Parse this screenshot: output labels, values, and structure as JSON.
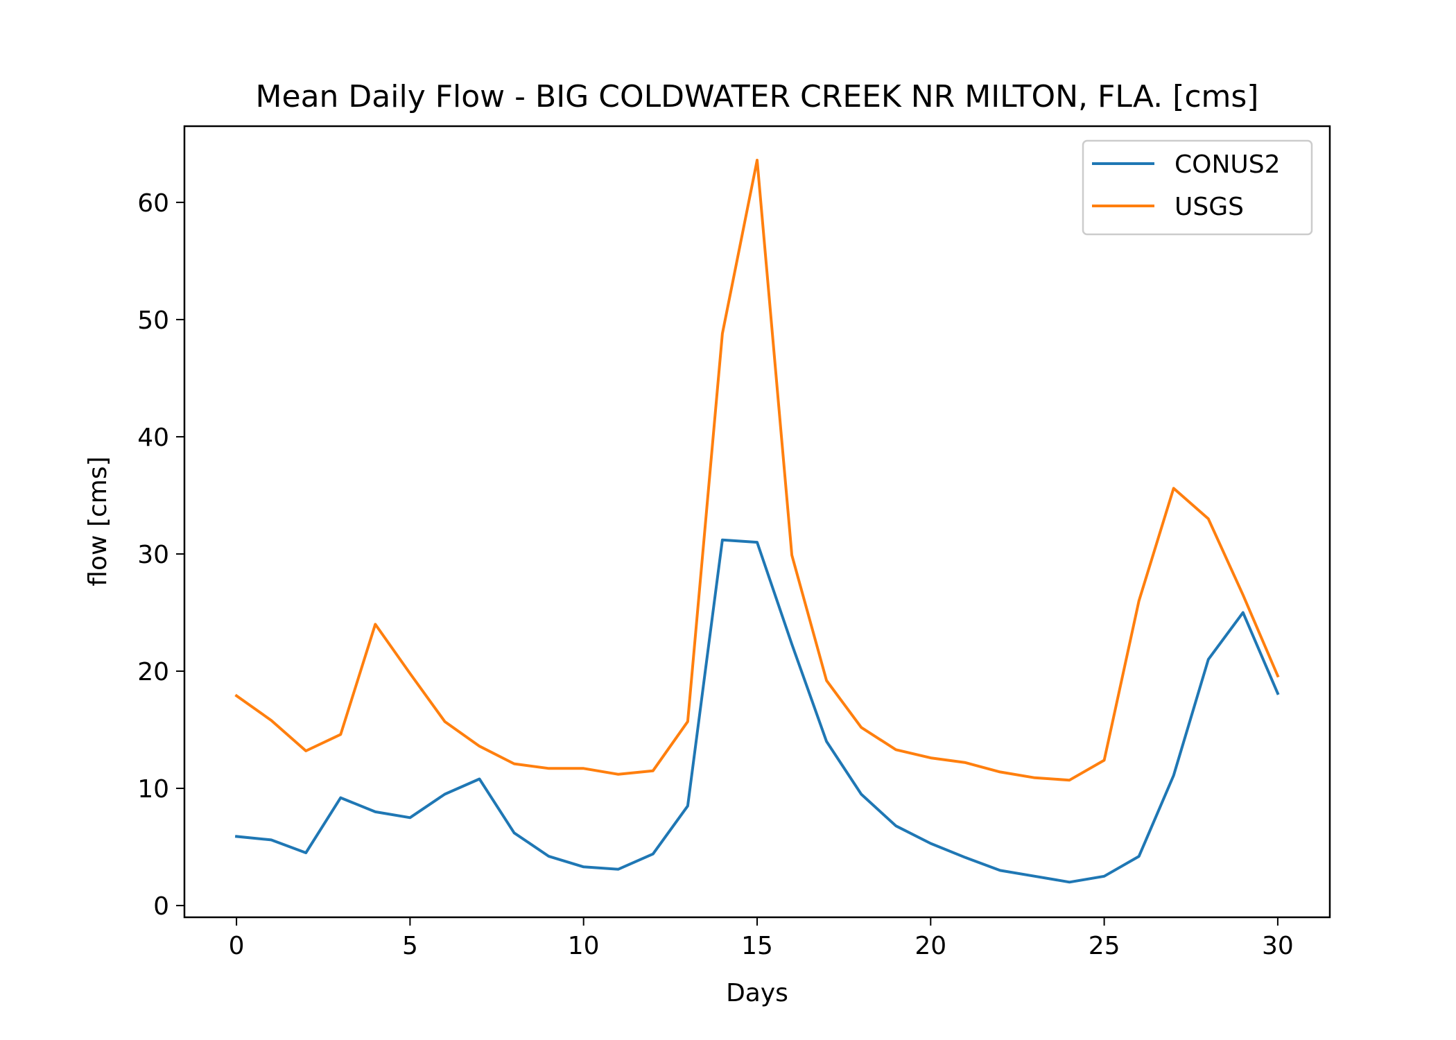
{
  "chart_data": {
    "type": "line",
    "title": "Mean Daily Flow - BIG COLDWATER CREEK NR MILTON, FLA. [cms]",
    "xlabel": "Days",
    "ylabel": "flow [cms]",
    "xlim": [
      -1.5,
      31.5
    ],
    "ylim": [
      -1.0,
      66.5
    ],
    "xticks": [
      0,
      5,
      10,
      15,
      20,
      25,
      30
    ],
    "yticks": [
      0,
      10,
      20,
      30,
      40,
      50,
      60
    ],
    "grid": false,
    "legend_position": "top-right",
    "x": [
      0,
      1,
      2,
      3,
      4,
      5,
      6,
      7,
      8,
      9,
      10,
      11,
      12,
      13,
      14,
      15,
      16,
      17,
      18,
      19,
      20,
      21,
      22,
      23,
      24,
      25,
      26,
      27,
      28,
      29,
      30
    ],
    "series": [
      {
        "name": "CONUS2",
        "color": "#1f77b4",
        "values": [
          5.9,
          5.6,
          4.5,
          9.2,
          8.0,
          7.5,
          9.5,
          10.8,
          6.2,
          4.2,
          3.3,
          3.1,
          4.4,
          8.5,
          31.2,
          31.0,
          22.3,
          14.0,
          9.5,
          6.8,
          5.3,
          4.1,
          3.0,
          2.5,
          2.0,
          2.5,
          4.2,
          11.1,
          21.0,
          25.0,
          18.1
        ]
      },
      {
        "name": "USGS",
        "color": "#ff7f0e",
        "values": [
          17.9,
          15.8,
          13.2,
          14.6,
          24.0,
          19.8,
          15.7,
          13.6,
          12.1,
          11.7,
          11.7,
          11.2,
          11.5,
          15.7,
          48.8,
          63.6,
          29.9,
          19.2,
          15.2,
          13.3,
          12.6,
          12.2,
          11.4,
          10.9,
          10.7,
          12.4,
          26.0,
          35.6,
          33.0,
          26.5,
          19.6
        ]
      }
    ]
  }
}
